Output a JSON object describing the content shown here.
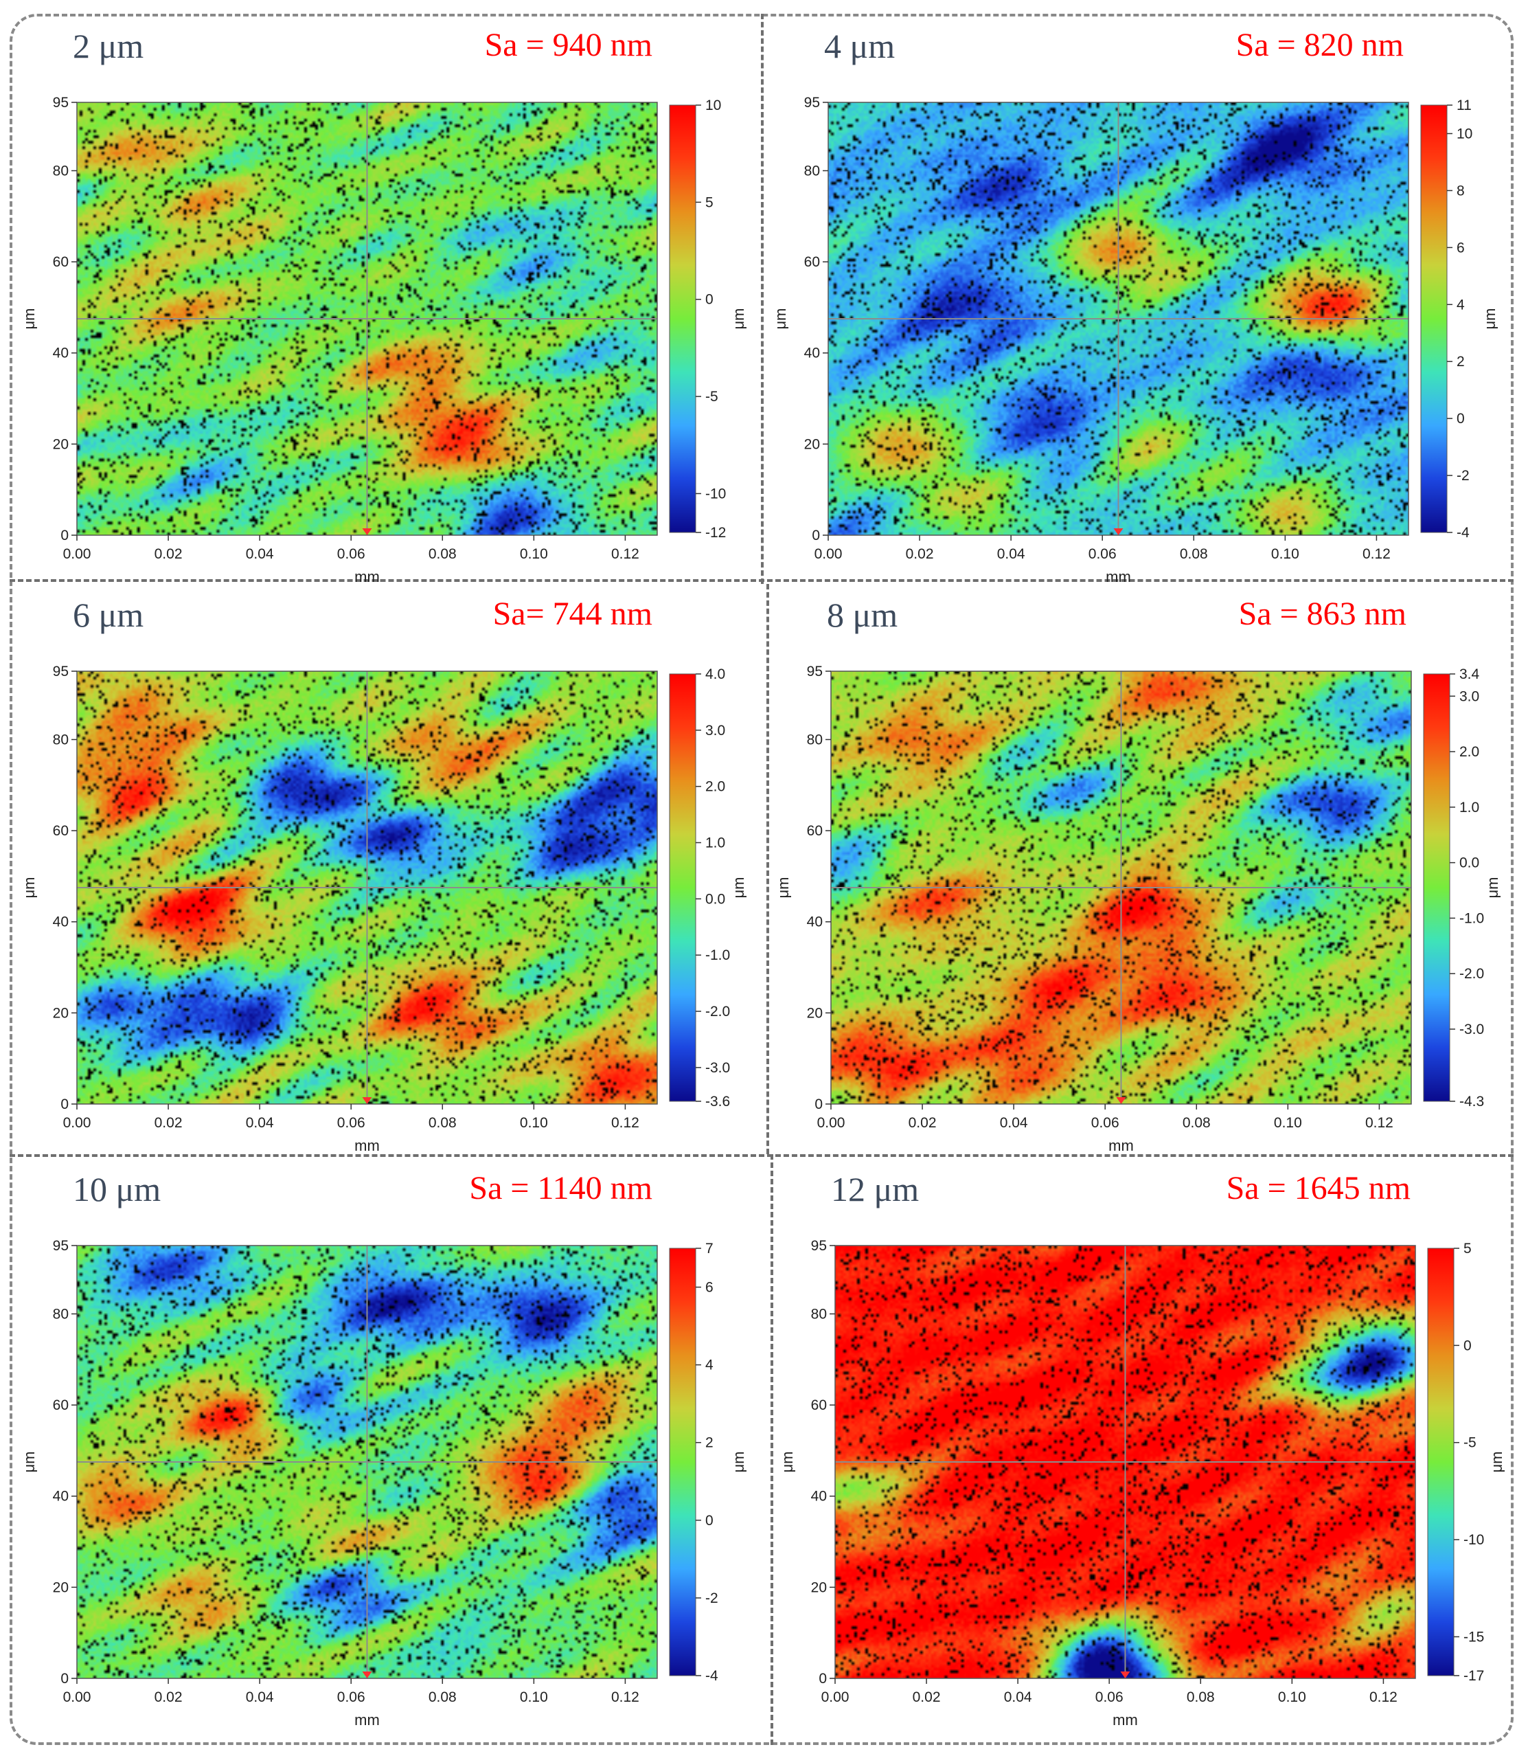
{
  "colorscale": [
    "#0a0a8c",
    "#1c46e0",
    "#38a8ff",
    "#3ee3b8",
    "#77ec3c",
    "#c8d23a",
    "#e8901c",
    "#ff3a10",
    "#ff0000"
  ],
  "gridline_color": "#8c8c8c",
  "speckle_color": "#000000",
  "chart_data": [
    {
      "type": "heatmap",
      "title": "2 μm",
      "sa_label": "Sa = 940 nm",
      "xlabel": "mm",
      "ylabel": "μm",
      "colorbar_label": "μm",
      "xlim": [
        0,
        0.127
      ],
      "ylim": [
        0,
        95
      ],
      "x_ticks": [
        "0.00",
        "0.02",
        "0.04",
        "0.06",
        "0.08",
        "0.10",
        "0.12"
      ],
      "y_ticks": [
        "0",
        "20",
        "40",
        "60",
        "80",
        "95"
      ],
      "colorbar_range": [
        -12,
        10
      ],
      "colorbar_ticks": [
        "10",
        "5",
        "0",
        "-5",
        "-10",
        "-12"
      ],
      "colorbar_tick_values": [
        10,
        5,
        0,
        -5,
        -10,
        -12
      ],
      "baseline_value": -1.5,
      "features": [
        {
          "x": 0.085,
          "y": 20,
          "value": 8
        },
        {
          "x": 0.075,
          "y": 35,
          "value": 5
        },
        {
          "x": 0.012,
          "y": 85,
          "value": 3
        },
        {
          "x": 0.03,
          "y": 70,
          "value": 2.5
        },
        {
          "x": 0.02,
          "y": 50,
          "value": 3
        },
        {
          "x": 0.095,
          "y": 5,
          "value": -10
        },
        {
          "x": 0.03,
          "y": 15,
          "value": -5
        },
        {
          "x": 0.1,
          "y": 62,
          "value": -6
        },
        {
          "x": 0.12,
          "y": 40,
          "value": -4
        }
      ]
    },
    {
      "type": "heatmap",
      "title": "4 μm",
      "sa_label": "Sa = 820 nm",
      "xlabel": "mm",
      "ylabel": "μm",
      "colorbar_label": "μm",
      "xlim": [
        0,
        0.127
      ],
      "ylim": [
        0,
        95
      ],
      "x_ticks": [
        "0.00",
        "0.02",
        "0.04",
        "0.06",
        "0.08",
        "0.10",
        "0.12"
      ],
      "y_ticks": [
        "0",
        "20",
        "40",
        "60",
        "80",
        "95"
      ],
      "colorbar_range": [
        -4,
        11
      ],
      "colorbar_ticks": [
        "11",
        "10",
        "8",
        "6",
        "4",
        "2",
        "0",
        "-2",
        "-4"
      ],
      "colorbar_tick_values": [
        11,
        10,
        8,
        6,
        4,
        2,
        0,
        -2,
        -4
      ],
      "baseline_value": 0.5,
      "features": [
        {
          "x": 0.11,
          "y": 50,
          "value": 10
        },
        {
          "x": 0.065,
          "y": 62,
          "value": 8
        },
        {
          "x": 0.015,
          "y": 20,
          "value": 6
        },
        {
          "x": 0.07,
          "y": 20,
          "value": 5
        },
        {
          "x": 0.03,
          "y": 8,
          "value": 5
        },
        {
          "x": 0.1,
          "y": 5,
          "value": 6
        },
        {
          "x": 0.04,
          "y": 75,
          "value": -3
        },
        {
          "x": 0.1,
          "y": 85,
          "value": -3.5
        },
        {
          "x": 0.11,
          "y": 35,
          "value": -3
        },
        {
          "x": 0.05,
          "y": 25,
          "value": -2.5
        },
        {
          "x": 0.03,
          "y": 50,
          "value": -2.5
        }
      ]
    },
    {
      "type": "heatmap",
      "title": "6 μm",
      "sa_label": "Sa= 744 nm",
      "xlabel": "mm",
      "ylabel": "μm",
      "colorbar_label": "μm",
      "xlim": [
        0,
        0.127
      ],
      "ylim": [
        0,
        95
      ],
      "x_ticks": [
        "0.00",
        "0.02",
        "0.04",
        "0.06",
        "0.08",
        "0.10",
        "0.12"
      ],
      "y_ticks": [
        "0",
        "20",
        "40",
        "60",
        "80",
        "95"
      ],
      "colorbar_range": [
        -3.6,
        4.0
      ],
      "colorbar_ticks": [
        "4.0",
        "3.0",
        "2.0",
        "1.0",
        "0.0",
        "-1.0",
        "-2.0",
        "-3.0",
        "-3.6"
      ],
      "colorbar_tick_values": [
        4.0,
        3.0,
        2.0,
        1.0,
        0.0,
        -1.0,
        -2.0,
        -3.0,
        -3.6
      ],
      "baseline_value": 0.3,
      "features": [
        {
          "x": 0.025,
          "y": 42,
          "value": 3.8
        },
        {
          "x": 0.08,
          "y": 20,
          "value": 3.5
        },
        {
          "x": 0.12,
          "y": 5,
          "value": 3.5
        },
        {
          "x": 0.01,
          "y": 70,
          "value": 3
        },
        {
          "x": 0.015,
          "y": 85,
          "value": 2.5
        },
        {
          "x": 0.08,
          "y": 78,
          "value": 2.5
        },
        {
          "x": 0.07,
          "y": 58,
          "value": -3
        },
        {
          "x": 0.05,
          "y": 70,
          "value": -3
        },
        {
          "x": 0.035,
          "y": 20,
          "value": -3
        },
        {
          "x": 0.01,
          "y": 20,
          "value": -2.5
        },
        {
          "x": 0.11,
          "y": 57,
          "value": -3
        },
        {
          "x": 0.125,
          "y": 68,
          "value": -3
        }
      ]
    },
    {
      "type": "heatmap",
      "title": "8 μm",
      "sa_label": "Sa = 863 nm",
      "xlabel": "mm",
      "ylabel": "μm",
      "colorbar_label": "μm",
      "xlim": [
        0,
        0.127
      ],
      "ylim": [
        0,
        95
      ],
      "x_ticks": [
        "0.00",
        "0.02",
        "0.04",
        "0.06",
        "0.08",
        "0.10",
        "0.12"
      ],
      "y_ticks": [
        "0",
        "20",
        "40",
        "60",
        "80",
        "95"
      ],
      "colorbar_range": [
        -4.3,
        3.4
      ],
      "colorbar_ticks": [
        "3.4",
        "3.0",
        "2.0",
        "1.0",
        "0.0",
        "-1.0",
        "-2.0",
        "-3.0",
        "-4.3"
      ],
      "colorbar_tick_values": [
        3.4,
        3.0,
        2.0,
        1.0,
        0.0,
        -1.0,
        -2.0,
        -3.0,
        -4.3
      ],
      "baseline_value": 0.0,
      "features": [
        {
          "x": 0.02,
          "y": 45,
          "value": 2.5
        },
        {
          "x": 0.07,
          "y": 42,
          "value": 3
        },
        {
          "x": 0.05,
          "y": 25,
          "value": 2.5
        },
        {
          "x": 0.01,
          "y": 10,
          "value": 3
        },
        {
          "x": 0.04,
          "y": 10,
          "value": 2.5
        },
        {
          "x": 0.075,
          "y": 25,
          "value": 2.5
        },
        {
          "x": 0.02,
          "y": 80,
          "value": 1.8
        },
        {
          "x": 0.075,
          "y": 92,
          "value": 2.2
        },
        {
          "x": 0.11,
          "y": 65,
          "value": -3.5
        },
        {
          "x": 0.12,
          "y": 85,
          "value": -2.5
        },
        {
          "x": 0.05,
          "y": 70,
          "value": -2.2
        },
        {
          "x": 0.005,
          "y": 52,
          "value": -2.5
        },
        {
          "x": 0.1,
          "y": 45,
          "value": -1.5
        }
      ]
    },
    {
      "type": "heatmap",
      "title": "10 μm",
      "sa_label": "Sa = 1140 nm",
      "xlabel": "mm",
      "ylabel": "μm",
      "colorbar_label": "μm",
      "xlim": [
        0,
        0.127
      ],
      "ylim": [
        0,
        95
      ],
      "x_ticks": [
        "0.00",
        "0.02",
        "0.04",
        "0.06",
        "0.08",
        "0.10",
        "0.12"
      ],
      "y_ticks": [
        "0",
        "20",
        "40",
        "60",
        "80",
        "95"
      ],
      "colorbar_range": [
        -4,
        7
      ],
      "colorbar_ticks": [
        "7",
        "6",
        "4",
        "2",
        "0",
        "-2",
        "-4"
      ],
      "colorbar_tick_values": [
        7,
        6,
        4,
        2,
        0,
        -2,
        -4
      ],
      "baseline_value": 1.0,
      "features": [
        {
          "x": 0.035,
          "y": 57,
          "value": 7
        },
        {
          "x": 0.1,
          "y": 45,
          "value": 6
        },
        {
          "x": 0.01,
          "y": 40,
          "value": 5
        },
        {
          "x": 0.06,
          "y": 30,
          "value": 4.5
        },
        {
          "x": 0.03,
          "y": 15,
          "value": 4
        },
        {
          "x": 0.11,
          "y": 60,
          "value": 4
        },
        {
          "x": 0.07,
          "y": 82,
          "value": -3.5
        },
        {
          "x": 0.1,
          "y": 80,
          "value": -3.5
        },
        {
          "x": 0.02,
          "y": 90,
          "value": -2.5
        },
        {
          "x": 0.06,
          "y": 20,
          "value": -3
        },
        {
          "x": 0.05,
          "y": 60,
          "value": -3
        },
        {
          "x": 0.12,
          "y": 38,
          "value": -2.5
        }
      ]
    },
    {
      "type": "heatmap",
      "title": "12 μm",
      "sa_label": "Sa = 1645 nm",
      "xlabel": "mm",
      "ylabel": "μm",
      "colorbar_label": "μm",
      "xlim": [
        0,
        0.127
      ],
      "ylim": [
        0,
        95
      ],
      "x_ticks": [
        "0.00",
        "0.02",
        "0.04",
        "0.06",
        "0.08",
        "0.10",
        "0.12"
      ],
      "y_ticks": [
        "0",
        "20",
        "40",
        "60",
        "80",
        "95"
      ],
      "colorbar_range": [
        -17,
        5
      ],
      "colorbar_ticks": [
        "5",
        "0",
        "-5",
        "-10",
        "-15",
        "-17"
      ],
      "colorbar_tick_values": [
        5,
        0,
        -5,
        -10,
        -15,
        -17
      ],
      "baseline_value": 4.0,
      "features": [
        {
          "x": 0.06,
          "y": 1,
          "value": -17
        },
        {
          "x": 0.12,
          "y": 72,
          "value": -12
        },
        {
          "x": 0.11,
          "y": 65,
          "value": -6
        },
        {
          "x": 0.005,
          "y": 40,
          "value": -4
        },
        {
          "x": 0.06,
          "y": 8,
          "value": -2
        },
        {
          "x": 0.12,
          "y": 15,
          "value": -3
        },
        {
          "x": 0.05,
          "y": 50,
          "value": 5
        },
        {
          "x": 0.05,
          "y": 25,
          "value": 5
        }
      ]
    }
  ]
}
